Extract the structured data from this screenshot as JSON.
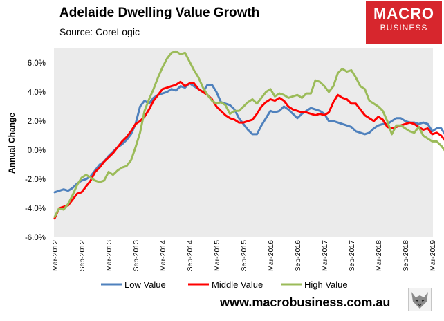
{
  "header": {
    "title": "Adelaide Dwelling Value Growth",
    "subtitle": "Source: CoreLogic",
    "brand_line1": "MACRO",
    "brand_line2": "BUSINESS"
  },
  "footer": {
    "site": "www.macrobusiness.com.au"
  },
  "colors": {
    "low": "#4f81bd",
    "middle": "#ff0000",
    "high": "#9bbb59",
    "brand": "#d7262d",
    "plot_bg": "#ebebeb"
  },
  "chart_data": {
    "type": "line",
    "ylabel": "Annual Change",
    "ylim": [
      -0.06,
      0.07
    ],
    "yticks": [
      "-6.0%",
      "-4.0%",
      "-2.0%",
      "0.0%",
      "2.0%",
      "4.0%",
      "6.0%"
    ],
    "ytick_values": [
      -0.06,
      -0.04,
      -0.02,
      0.0,
      0.02,
      0.04,
      0.06
    ],
    "x_start": "Mar-2012",
    "x_end": "Jun-2019",
    "xticks": [
      "Mar-2012",
      "Sep-2012",
      "Mar-2013",
      "Sep-2013",
      "Mar-2014",
      "Sep-2014",
      "Mar-2015",
      "Sep-2015",
      "Mar-2016",
      "Sep-2016",
      "Mar-2017",
      "Sep-2017",
      "Mar-2018",
      "Sep-2018",
      "Mar-2019"
    ],
    "legend_position": "bottom",
    "grid": false,
    "series": [
      {
        "name": "Low Value",
        "color": "#4f81bd",
        "values": [
          -0.029,
          -0.028,
          -0.027,
          -0.028,
          -0.026,
          -0.023,
          -0.021,
          -0.02,
          -0.018,
          -0.014,
          -0.01,
          -0.008,
          -0.004,
          -0.001,
          0.002,
          0.004,
          0.007,
          0.011,
          0.018,
          0.03,
          0.034,
          0.032,
          0.036,
          0.038,
          0.039,
          0.04,
          0.042,
          0.041,
          0.044,
          0.043,
          0.046,
          0.044,
          0.042,
          0.04,
          0.045,
          0.045,
          0.04,
          0.033,
          0.032,
          0.031,
          0.028,
          0.022,
          0.018,
          0.014,
          0.011,
          0.011,
          0.017,
          0.022,
          0.027,
          0.026,
          0.027,
          0.03,
          0.028,
          0.025,
          0.022,
          0.025,
          0.027,
          0.029,
          0.028,
          0.027,
          0.025,
          0.02,
          0.02,
          0.019,
          0.018,
          0.017,
          0.016,
          0.013,
          0.012,
          0.011,
          0.012,
          0.015,
          0.017,
          0.018,
          0.018,
          0.02,
          0.022,
          0.022,
          0.02,
          0.019,
          0.019,
          0.018,
          0.019,
          0.018,
          0.013,
          0.015,
          0.015,
          0.01
        ]
      },
      {
        "name": "Middle Value",
        "color": "#ff0000",
        "values": [
          -0.047,
          -0.04,
          -0.039,
          -0.038,
          -0.034,
          -0.03,
          -0.029,
          -0.025,
          -0.021,
          -0.015,
          -0.012,
          -0.008,
          -0.005,
          -0.002,
          0.002,
          0.006,
          0.009,
          0.013,
          0.018,
          0.02,
          0.023,
          0.028,
          0.034,
          0.038,
          0.042,
          0.043,
          0.044,
          0.045,
          0.047,
          0.044,
          0.046,
          0.046,
          0.042,
          0.04,
          0.038,
          0.035,
          0.03,
          0.027,
          0.024,
          0.022,
          0.021,
          0.019,
          0.019,
          0.02,
          0.021,
          0.025,
          0.03,
          0.033,
          0.035,
          0.034,
          0.036,
          0.034,
          0.03,
          0.028,
          0.027,
          0.026,
          0.026,
          0.025,
          0.024,
          0.025,
          0.024,
          0.026,
          0.033,
          0.038,
          0.036,
          0.035,
          0.032,
          0.032,
          0.028,
          0.024,
          0.022,
          0.02,
          0.023,
          0.021,
          0.016,
          0.015,
          0.016,
          0.017,
          0.018,
          0.019,
          0.018,
          0.016,
          0.014,
          0.015,
          0.011,
          0.012,
          0.01,
          0.006
        ]
      },
      {
        "name": "High Value",
        "color": "#9bbb59",
        "values": [
          -0.046,
          -0.04,
          -0.041,
          -0.037,
          -0.031,
          -0.024,
          -0.019,
          -0.017,
          -0.019,
          -0.021,
          -0.022,
          -0.021,
          -0.015,
          -0.017,
          -0.014,
          -0.012,
          -0.011,
          -0.007,
          0.002,
          0.012,
          0.027,
          0.035,
          0.042,
          0.05,
          0.057,
          0.063,
          0.067,
          0.068,
          0.066,
          0.067,
          0.061,
          0.055,
          0.05,
          0.043,
          0.038,
          0.034,
          0.032,
          0.033,
          0.031,
          0.025,
          0.027,
          0.027,
          0.03,
          0.033,
          0.035,
          0.032,
          0.036,
          0.04,
          0.042,
          0.037,
          0.039,
          0.038,
          0.036,
          0.037,
          0.038,
          0.036,
          0.039,
          0.039,
          0.048,
          0.047,
          0.044,
          0.04,
          0.044,
          0.053,
          0.056,
          0.054,
          0.055,
          0.05,
          0.044,
          0.042,
          0.034,
          0.032,
          0.03,
          0.027,
          0.02,
          0.011,
          0.017,
          0.017,
          0.015,
          0.013,
          0.012,
          0.016,
          0.01,
          0.008,
          0.006,
          0.006,
          0.003,
          -0.001
        ]
      }
    ]
  }
}
